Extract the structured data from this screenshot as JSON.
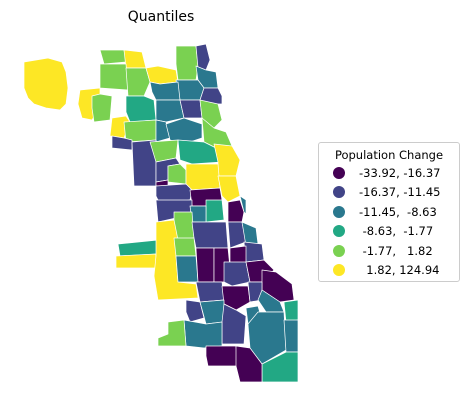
{
  "title": "Quantiles",
  "legend": {
    "title": "Population Change",
    "location": "right",
    "items": [
      {
        "label": "-33.92, -16.37",
        "color": "#440154"
      },
      {
        "label": "-16.37, -11.45",
        "color": "#414487"
      },
      {
        "label": "-11.45,  -8.63",
        "color": "#2a788e"
      },
      {
        "label": " -8.63,  -1.77",
        "color": "#22a884"
      },
      {
        "label": " -1.77,   1.82",
        "color": "#7ad151"
      },
      {
        "label": "  1.82, 124.94",
        "color": "#fde725"
      }
    ]
  },
  "map_data": {
    "type": "choropleth",
    "scheme": "quantiles",
    "classes": 6
  }
}
